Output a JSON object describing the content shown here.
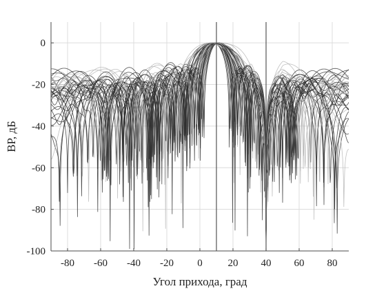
{
  "chart_data": {
    "type": "line",
    "title": "",
    "xlabel": "Угол прихода, град",
    "ylabel": "ВР, дБ",
    "xlim": [
      -90,
      90
    ],
    "ylim": [
      -100,
      10
    ],
    "xticks": [
      -80,
      -60,
      -40,
      -20,
      0,
      20,
      40,
      60,
      80
    ],
    "yticks": [
      0,
      -20,
      -40,
      -60,
      -80,
      -100
    ],
    "xtick_labels": [
      "-80",
      "-60",
      "-40",
      "-20",
      "0",
      "20",
      "40",
      "60",
      "80"
    ],
    "ytick_labels": [
      "0",
      "-20",
      "-40",
      "-60",
      "-80",
      "-100"
    ],
    "grid": true,
    "legend": "none",
    "mainlobe_direction_deg": 10,
    "interference_direction_deg": 40,
    "vertical_markers": [
      {
        "name": "mainlobe-marker",
        "x": 10
      },
      {
        "name": "interference-marker",
        "x": 40
      }
    ],
    "series_description": "family of ~40 array beam patterns, each with a mainlobe peak of 0 dB near 8-10 deg and a deep null near 40 deg",
    "series_count": 40,
    "colors": {
      "grid": "#dcdcdc",
      "axes": "#4a4a4a",
      "marker_line": "#555555",
      "curve_dark": "#2f2f2f",
      "curve_light": "#b5b5b5"
    }
  }
}
